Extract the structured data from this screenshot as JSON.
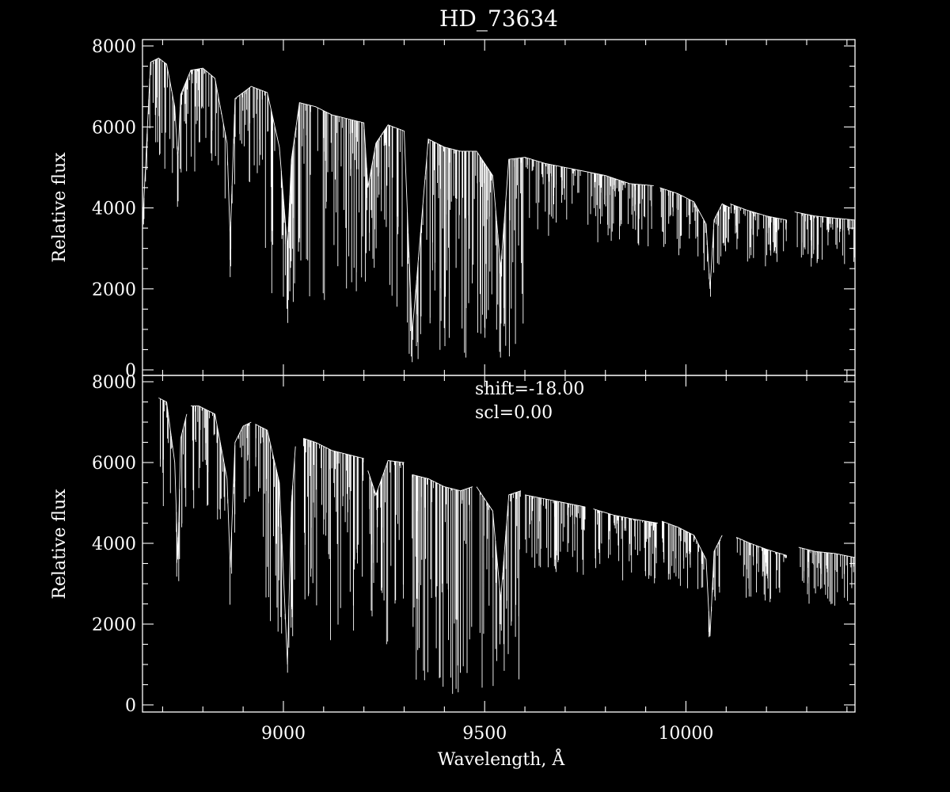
{
  "chart_data": [
    {
      "type": "line",
      "title": "HD_73634",
      "ylabel": "Relative flux",
      "xlabel": "",
      "xlim": [
        8650,
        10420
      ],
      "ylim": [
        0,
        8000
      ],
      "yticks": [
        "0",
        "2000",
        "4000",
        "6000",
        "8000"
      ],
      "xticks": [],
      "annotations": [],
      "series": [
        {
          "segments": [
            {
              "x": [
                8650,
                8670,
                8690,
                8710,
                8730,
                8738,
                8745,
                8770,
                8800,
                8830,
                8860,
                8868,
                8880,
                8920,
                8960,
                8990,
                9010,
                9020,
                9040,
                9080,
                9120,
                9160,
                9200,
                9210,
                9230,
                9260,
                9300,
                9320,
                9360,
                9400,
                9440,
                9480,
                9500,
                9520,
                9540,
                9560,
                9600,
                9650,
                9700,
                9750,
                9800,
                9860,
                9920
              ],
              "y": [
                3500,
                7600,
                7700,
                7550,
                6500,
                5200,
                6800,
                7400,
                7450,
                7200,
                5600,
                3200,
                6700,
                7000,
                6850,
                5500,
                3000,
                5200,
                6600,
                6500,
                6300,
                6200,
                6100,
                4500,
                5600,
                6050,
                5900,
                900,
                5700,
                5500,
                5400,
                5400,
                5100,
                4800,
                2500,
                5200,
                5250,
                5100,
                5000,
                4900,
                4800,
                4600,
                4550
              ]
            },
            {
              "x": [
                9935,
                9980,
                10020,
                10050,
                10060,
                10070,
                10090,
                10110
              ],
              "y": [
                4500,
                4350,
                4150,
                3600,
                2000,
                3700,
                4100,
                4000
              ]
            },
            {
              "x": [
                10110,
                10150,
                10200,
                10250
              ],
              "y": [
                4100,
                3950,
                3800,
                3700
              ]
            },
            {
              "x": [
                10270,
                10320,
                10370,
                10420
              ],
              "y": [
                3900,
                3800,
                3750,
                3700
              ]
            }
          ]
        }
      ]
    },
    {
      "type": "line",
      "title": "",
      "ylabel": "Relative flux",
      "xlabel": "Wavelength, Å",
      "xlim": [
        8650,
        10420
      ],
      "ylim": [
        0,
        8000
      ],
      "yticks": [
        "0",
        "2000",
        "4000",
        "6000",
        "8000"
      ],
      "xticks": [
        "9000",
        "9500",
        "10000"
      ],
      "annotations": [
        "shift=-18.00",
        "scl=0.00"
      ],
      "series": [
        {
          "segments": [
            {
              "x": [
                8690,
                8710,
                8730,
                8738,
                8745,
                8760
              ],
              "y": [
                7600,
                7500,
                6000,
                3600,
                6600,
                7200
              ]
            },
            {
              "x": [
                8770,
                8790,
                8830,
                8860,
                8868,
                8880,
                8900,
                8920
              ],
              "y": [
                7400,
                7400,
                7200,
                5600,
                3400,
                6500,
                6900,
                7000
              ]
            },
            {
              "x": [
                8930,
                8960,
                8990,
                9010,
                9020,
                9030
              ],
              "y": [
                6950,
                6800,
                5500,
                1000,
                5000,
                6400
              ]
            },
            {
              "x": [
                9050,
                9080,
                9120,
                9160,
                9200
              ],
              "y": [
                6600,
                6500,
                6300,
                6200,
                6100
              ]
            },
            {
              "x": [
                9210,
                9230,
                9260,
                9300
              ],
              "y": [
                5800,
                5200,
                6050,
                6000
              ]
            },
            {
              "x": [
                9320,
                9360,
                9400,
                9440,
                9470
              ],
              "y": [
                5700,
                5600,
                5400,
                5300,
                5400
              ]
            },
            {
              "x": [
                9480,
                9500,
                9520,
                9540,
                9560,
                9590
              ],
              "y": [
                5400,
                5100,
                4800,
                2600,
                5200,
                5300
              ]
            },
            {
              "x": [
                9600,
                9650,
                9700,
                9750
              ],
              "y": [
                5200,
                5100,
                5000,
                4900
              ]
            },
            {
              "x": [
                9770,
                9820,
                9870,
                9930
              ],
              "y": [
                4850,
                4700,
                4600,
                4500
              ]
            },
            {
              "x": [
                9940,
                9980,
                10020,
                10050,
                10060,
                10070,
                10090
              ],
              "y": [
                4550,
                4400,
                4200,
                3600,
                1700,
                3800,
                4200
              ]
            },
            {
              "x": [
                10125,
                10160,
                10200,
                10250
              ],
              "y": [
                4150,
                4000,
                3850,
                3700
              ]
            },
            {
              "x": [
                10280,
                10320,
                10370,
                10420
              ],
              "y": [
                3900,
                3800,
                3750,
                3650
              ]
            }
          ]
        }
      ]
    }
  ]
}
